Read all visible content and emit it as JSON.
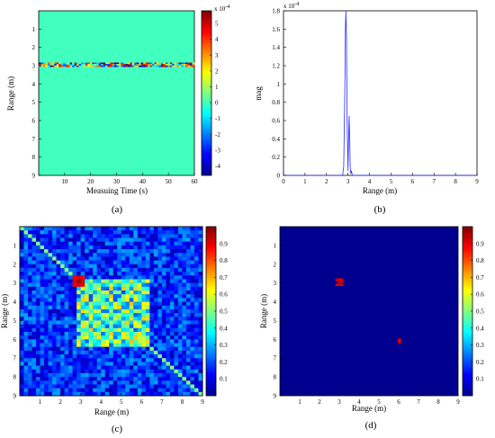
{
  "figure": {
    "panels": [
      {
        "id": "a",
        "caption": "(a)",
        "type": "heatmap",
        "xlabel": "Measuing Time (s)",
        "ylabel": "Range (m)",
        "xticks": [
          "10",
          "20",
          "30",
          "40",
          "50",
          "60"
        ],
        "yticks": [
          "1",
          "2",
          "3",
          "4",
          "5",
          "6",
          "7",
          "8",
          "9"
        ],
        "colorbar": {
          "ticks": [
            "5",
            "4",
            "3",
            "2",
            "1",
            "0",
            "-1",
            "-2",
            "-3",
            "-4"
          ],
          "exponent": "x 10^-4"
        }
      },
      {
        "id": "b",
        "caption": "(b)",
        "type": "line",
        "xlabel": "Range (m)",
        "ylabel": "mag",
        "xticks": [
          "0",
          "1",
          "2",
          "3",
          "4",
          "5",
          "6",
          "7",
          "8",
          "9"
        ],
        "yticks": [
          "0",
          "0.2",
          "0.4",
          "0.6",
          "0.8",
          "1",
          "1.2",
          "1.4",
          "1.6",
          "1.8"
        ],
        "exponent": "x 10^-4"
      },
      {
        "id": "c",
        "caption": "(c)",
        "type": "heatmap",
        "xlabel": "Range (m)",
        "ylabel": "Range (m)",
        "xticks": [
          "1",
          "2",
          "3",
          "4",
          "5",
          "6",
          "7",
          "8",
          "9"
        ],
        "yticks": [
          "1",
          "2",
          "3",
          "4",
          "5",
          "6",
          "7",
          "8",
          "9"
        ],
        "colorbar": {
          "ticks": [
            "0.9",
            "0.8",
            "0.7",
            "0.6",
            "0.5",
            "0.4",
            "0.3",
            "0.2",
            "0.1"
          ]
        }
      },
      {
        "id": "d",
        "caption": "(d)",
        "type": "heatmap",
        "xlabel": "Range (m)",
        "ylabel": "Range (m)",
        "xticks": [
          "1",
          "2",
          "3",
          "4",
          "5",
          "6",
          "7",
          "8",
          "9"
        ],
        "yticks": [
          "1",
          "2",
          "3",
          "4",
          "5",
          "6",
          "7",
          "8",
          "9"
        ],
        "colorbar": {
          "ticks": [
            "0.9",
            "0.8",
            "0.7",
            "0.6",
            "0.5",
            "0.4",
            "0.3",
            "0.2",
            "0.1"
          ]
        }
      }
    ]
  },
  "chart_data": [
    {
      "type": "heatmap",
      "panel": "a",
      "xlabel": "Measuing Time (s)",
      "ylabel": "Range (m)",
      "xlim": [
        0,
        60
      ],
      "ylim": [
        9,
        0
      ],
      "clim": [
        -4.6,
        5.8
      ],
      "clim_scale": "x 10^-4",
      "background_value": 0,
      "features": [
        {
          "description": "thin horizontal band of fluctuating values",
          "range_m": 2.95,
          "time_s": [
            0,
            60
          ],
          "value_range": [
            -4.5,
            5.5
          ]
        }
      ]
    },
    {
      "type": "line",
      "panel": "b",
      "xlabel": "Range (m)",
      "ylabel": "mag",
      "xlim": [
        0,
        9
      ],
      "ylim": [
        0,
        1.8
      ],
      "y_scale": "x 10^-4",
      "color": "#2a2aff",
      "series": [
        {
          "x": [
            0,
            2.75,
            2.8,
            2.85,
            2.88,
            2.9,
            2.93,
            2.96,
            3.0,
            3.02,
            3.05,
            3.08,
            3.1,
            3.13,
            3.16,
            3.2,
            9
          ],
          "y": [
            0,
            0,
            0.1,
            0.9,
            1.6,
            1.8,
            1.5,
            0.6,
            0.05,
            0.3,
            0.65,
            0.4,
            0.1,
            0.02,
            0.05,
            0,
            0
          ]
        }
      ]
    },
    {
      "type": "heatmap",
      "panel": "c",
      "xlabel": "Range (m)",
      "ylabel": "Range (m)",
      "xlim": [
        0,
        9
      ],
      "ylim": [
        9,
        0
      ],
      "clim": [
        0,
        1
      ],
      "features": [
        {
          "description": "high-value peak",
          "x": 2.9,
          "y": 2.9,
          "value": 0.97
        },
        {
          "description": "high-value peak",
          "x": 6.0,
          "y": 6.0,
          "value": 0.65
        },
        {
          "description": "diagonal",
          "value": 0.5
        },
        {
          "description": "checkerboard block of medium values",
          "x": [
            2.7,
            6.5
          ],
          "y": [
            2.7,
            6.5
          ],
          "value_range": [
            0.2,
            0.6
          ]
        },
        {
          "description": "background",
          "value_range": [
            0.05,
            0.35
          ]
        }
      ]
    },
    {
      "type": "heatmap",
      "panel": "d",
      "xlabel": "Range (m)",
      "ylabel": "Range (m)",
      "xlim": [
        0,
        9
      ],
      "ylim": [
        9,
        0
      ],
      "clim": [
        0,
        1
      ],
      "background_value": 0,
      "features": [
        {
          "description": "high-value cluster",
          "x": [
            2.8,
            3.2
          ],
          "y": [
            2.75,
            3.1
          ],
          "value": 0.95
        },
        {
          "description": "high-value spot",
          "x": [
            5.95,
            6.1
          ],
          "y": [
            5.95,
            6.15
          ],
          "value": 0.95
        }
      ]
    }
  ]
}
